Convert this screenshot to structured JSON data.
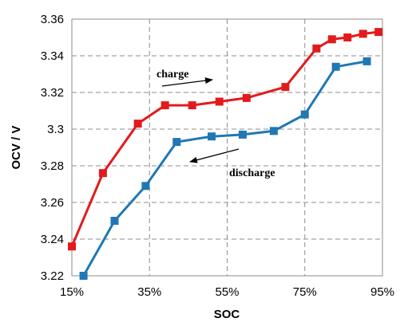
{
  "chart_data": {
    "type": "line",
    "title": "",
    "xlabel": "SOC",
    "ylabel": "OCV / V",
    "x_tick_labels": [
      "15%",
      "35%",
      "55%",
      "75%",
      "95%"
    ],
    "y_tick_labels": [
      "3.22",
      "3.24",
      "3.26",
      "3.28",
      "3.3",
      "3.32",
      "3.34",
      "3.36"
    ],
    "xlim": [
      15,
      95
    ],
    "ylim": [
      3.22,
      3.36
    ],
    "x_ticks": [
      15,
      35,
      55,
      75,
      95
    ],
    "y_ticks": [
      3.22,
      3.24,
      3.26,
      3.28,
      3.3,
      3.32,
      3.34,
      3.36
    ],
    "grid": true,
    "series": [
      {
        "name": "charge",
        "color": "#e31a1c",
        "marker": "square",
        "x": [
          15,
          23,
          32,
          39,
          46,
          53,
          60,
          70,
          78,
          82,
          86,
          90,
          94
        ],
        "y": [
          3.236,
          3.276,
          3.303,
          3.313,
          3.313,
          3.315,
          3.317,
          3.323,
          3.344,
          3.349,
          3.35,
          3.352,
          3.353
        ]
      },
      {
        "name": "discharge",
        "color": "#1f78b4",
        "marker": "square",
        "x": [
          18,
          26,
          34,
          42,
          51,
          59,
          67,
          75,
          83,
          91
        ],
        "y": [
          3.22,
          3.25,
          3.269,
          3.293,
          3.296,
          3.297,
          3.299,
          3.308,
          3.334,
          3.337
        ]
      }
    ],
    "annotations": [
      {
        "text": "charge",
        "arrow_direction": "right"
      },
      {
        "text": "discharge",
        "arrow_direction": "left"
      }
    ]
  }
}
